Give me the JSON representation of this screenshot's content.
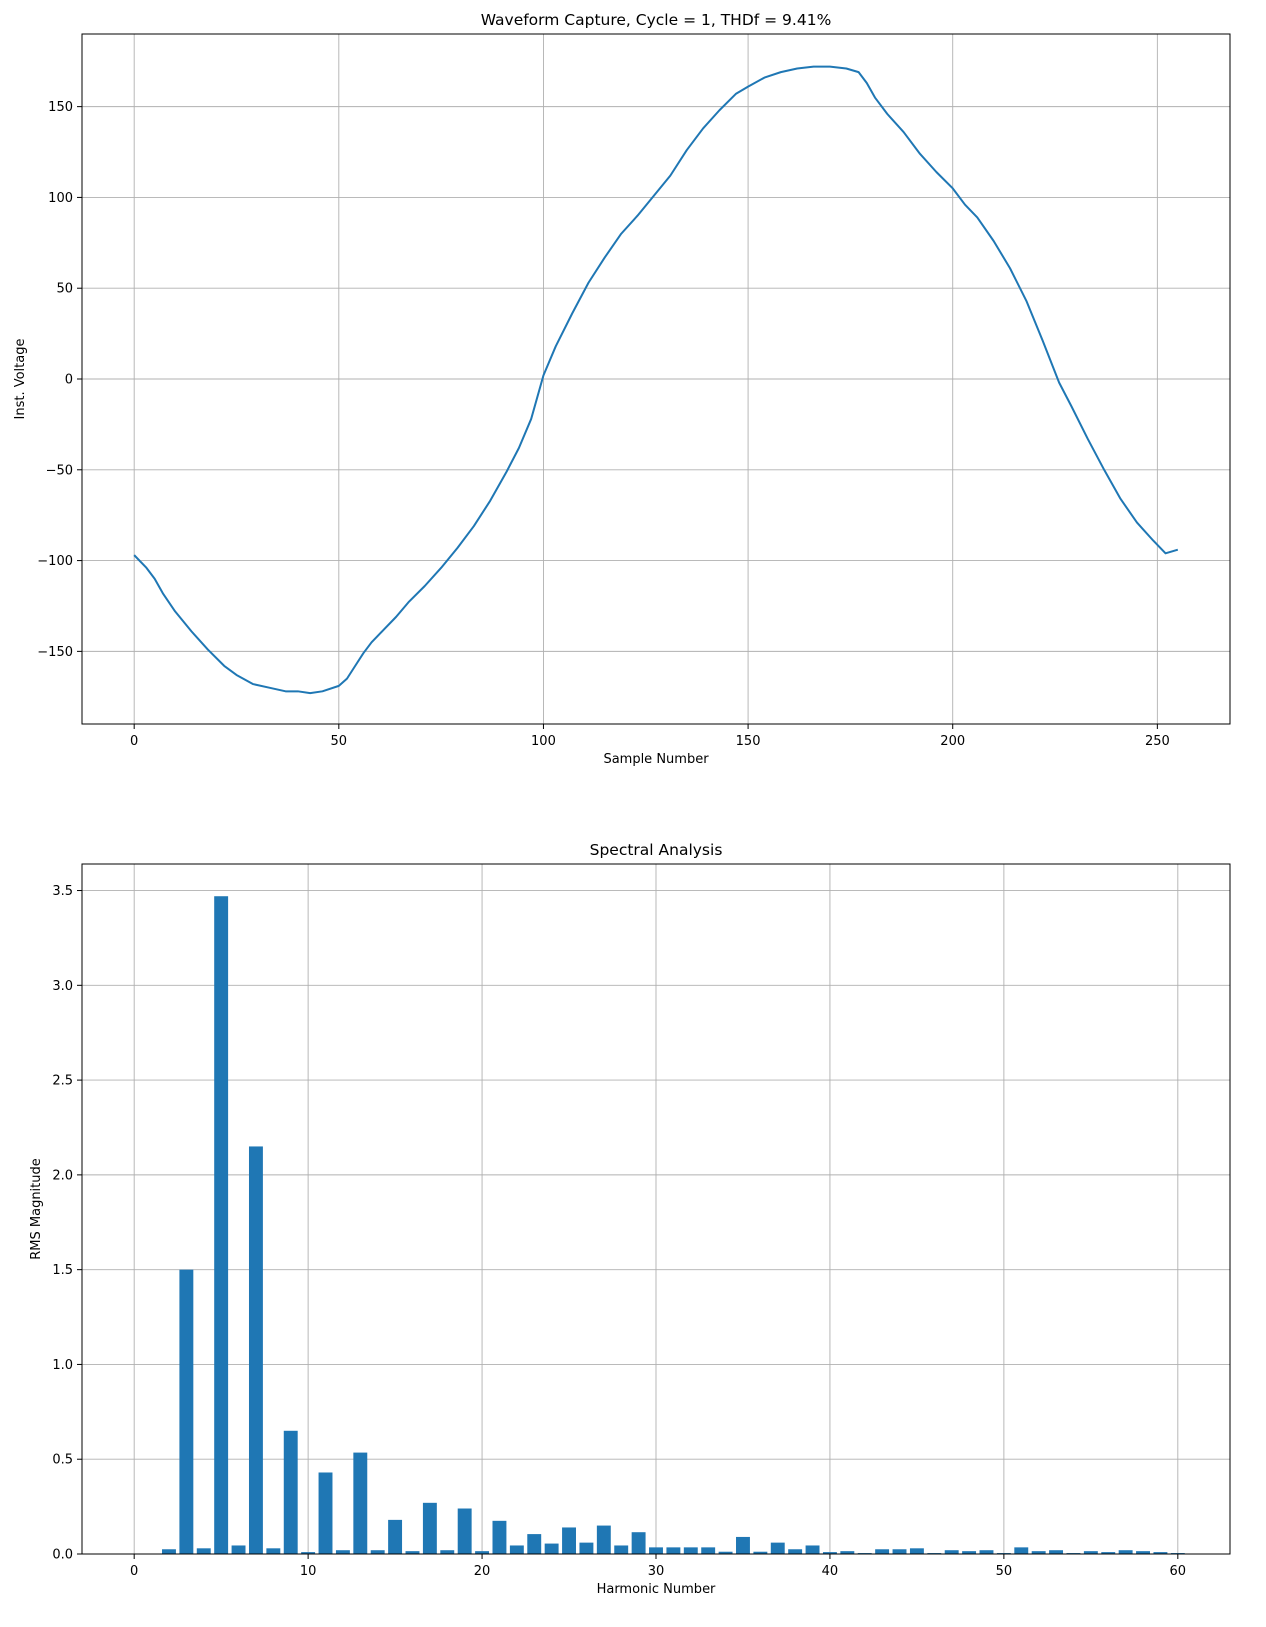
{
  "colors": {
    "series": "#1f77b4",
    "grid": "#b0b0b0",
    "background": "#ffffff"
  },
  "chart_data": [
    {
      "type": "line",
      "title": "Waveform Capture, Cycle = 1, THDf = 9.41%",
      "xlabel": "Sample Number",
      "ylabel": "Inst. Voltage",
      "xlim": [
        -12.75,
        267.75
      ],
      "ylim": [
        -190,
        190
      ],
      "xticks": [
        0,
        50,
        100,
        150,
        200,
        250
      ],
      "yticks": [
        -150,
        -100,
        -50,
        0,
        50,
        100,
        150
      ],
      "xtick_labels": [
        "0",
        "50",
        "100",
        "150",
        "200",
        "250"
      ],
      "ytick_labels": [
        "−150",
        "−100",
        "−50",
        "0",
        "50",
        "100",
        "150"
      ],
      "grid": true,
      "series": [
        {
          "x": [
            0,
            3,
            5,
            7,
            10,
            14,
            18,
            22,
            25,
            29,
            33,
            37,
            40,
            43,
            46,
            50,
            52,
            54,
            56,
            58,
            61,
            64,
            67,
            71,
            75,
            79,
            83,
            87,
            91,
            94,
            97,
            100,
            103,
            107,
            111,
            115,
            119,
            123,
            127,
            131,
            135,
            139,
            143,
            147,
            150,
            154,
            158,
            162,
            166,
            170,
            174,
            177,
            179,
            181,
            184,
            188,
            192,
            196,
            200,
            203,
            206,
            210,
            214,
            218,
            222,
            226,
            229,
            233,
            237,
            241,
            245,
            249,
            252,
            255
          ],
          "y": [
            -97,
            -104,
            -110,
            -118,
            -128,
            -139,
            -149,
            -158,
            -163,
            -168,
            -170,
            -172,
            -172,
            -173,
            -172,
            -169,
            -165,
            -158,
            -151,
            -145,
            -138,
            -131,
            -123,
            -114,
            -104,
            -93,
            -81,
            -67,
            -51,
            -38,
            -22,
            2,
            18,
            36,
            53,
            67,
            80,
            90,
            101,
            112,
            126,
            138,
            148,
            157,
            161,
            166,
            169,
            171,
            172,
            172,
            171,
            169,
            163,
            155,
            146,
            136,
            124,
            114,
            105,
            96,
            89,
            76,
            61,
            43,
            21,
            -2,
            -15,
            -33,
            -50,
            -66,
            -79,
            -89,
            -96,
            -94
          ]
        }
      ]
    },
    {
      "type": "bar",
      "title": "Spectral Analysis",
      "xlabel": "Harmonic Number",
      "ylabel": "RMS Magnitude",
      "xlim": [
        -3,
        63
      ],
      "ylim": [
        0,
        3.64
      ],
      "xticks": [
        0,
        10,
        20,
        30,
        40,
        50,
        60
      ],
      "yticks": [
        0.0,
        0.5,
        1.0,
        1.5,
        2.0,
        2.5,
        3.0,
        3.5
      ],
      "xtick_labels": [
        "0",
        "10",
        "20",
        "30",
        "40",
        "50",
        "60"
      ],
      "ytick_labels": [
        "0.0",
        "0.5",
        "1.0",
        "1.5",
        "2.0",
        "2.5",
        "3.0",
        "3.5"
      ],
      "grid": true,
      "categories": [
        2,
        3,
        4,
        5,
        6,
        7,
        8,
        9,
        10,
        11,
        12,
        13,
        14,
        15,
        16,
        17,
        18,
        19,
        20,
        21,
        22,
        23,
        24,
        25,
        26,
        27,
        28,
        29,
        30,
        31,
        32,
        33,
        34,
        35,
        36,
        37,
        38,
        39,
        40,
        41,
        42,
        43,
        44,
        45,
        46,
        47,
        48,
        49,
        50,
        51,
        52,
        53,
        54,
        55,
        56,
        57,
        58,
        59,
        60
      ],
      "values": [
        0.025,
        1.5,
        0.03,
        3.47,
        0.045,
        2.15,
        0.03,
        0.65,
        0.01,
        0.43,
        0.02,
        0.535,
        0.02,
        0.18,
        0.015,
        0.27,
        0.02,
        0.24,
        0.015,
        0.175,
        0.045,
        0.105,
        0.055,
        0.14,
        0.06,
        0.15,
        0.045,
        0.115,
        0.035,
        0.035,
        0.035,
        0.035,
        0.012,
        0.09,
        0.012,
        0.06,
        0.025,
        0.045,
        0.01,
        0.015,
        0.005,
        0.025,
        0.025,
        0.03,
        0.005,
        0.02,
        0.015,
        0.02,
        0.005,
        0.035,
        0.015,
        0.02,
        0.005,
        0.015,
        0.01,
        0.02,
        0.015,
        0.01,
        0.005
      ]
    }
  ]
}
